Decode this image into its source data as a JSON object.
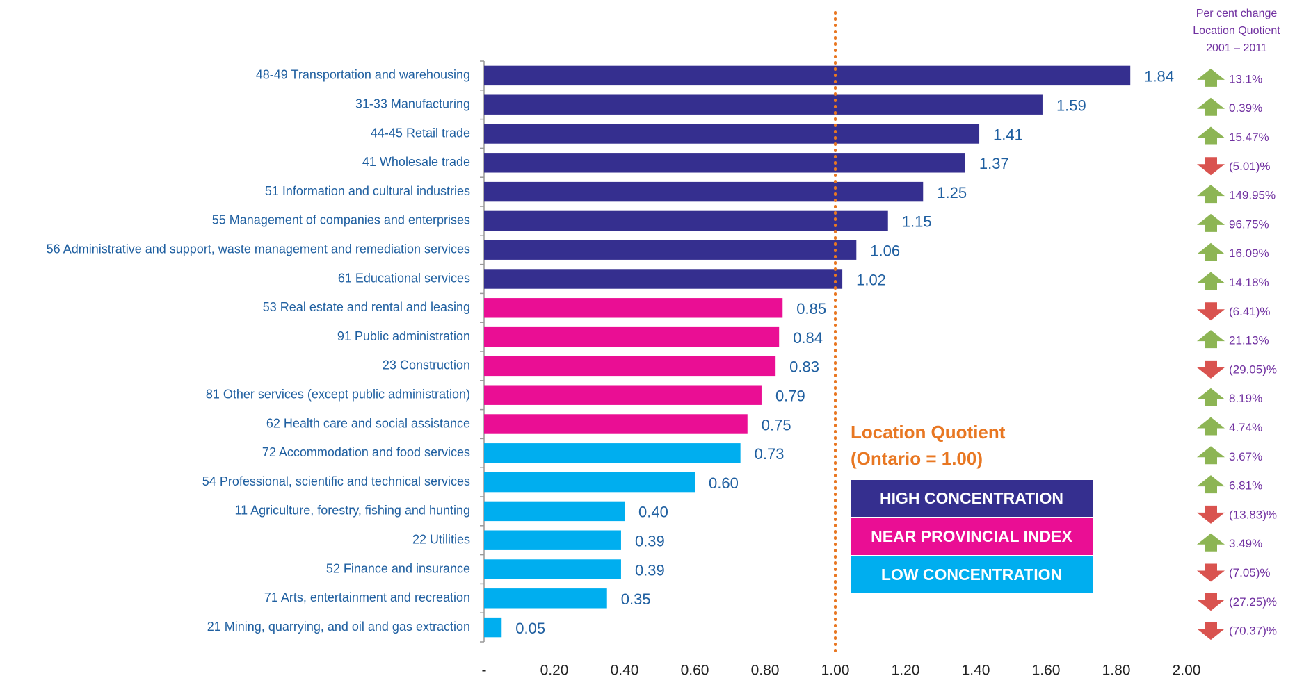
{
  "chart_data": {
    "type": "bar",
    "orientation": "horizontal",
    "categories": [
      "48-49 Transportation and warehousing",
      "31-33 Manufacturing",
      "44-45 Retail trade",
      "41 Wholesale trade",
      "51 Information and cultural industries",
      "55 Management of companies and enterprises",
      "56 Administrative and support, waste management and remediation services",
      "61 Educational services",
      "53 Real estate and rental and leasing",
      "91 Public administration",
      "23 Construction",
      "81 Other services (except public administration)",
      "62 Health care and social assistance",
      "72 Accommodation and food services",
      "54 Professional, scientific and technical services",
      "11 Agriculture, forestry, fishing and hunting",
      "22 Utilities",
      "52 Finance and insurance",
      "71 Arts, entertainment and recreation",
      "21 Mining, quarrying, and oil and gas extraction"
    ],
    "values": [
      1.84,
      1.59,
      1.41,
      1.37,
      1.25,
      1.15,
      1.06,
      1.02,
      0.85,
      0.84,
      0.83,
      0.79,
      0.75,
      0.73,
      0.6,
      0.4,
      0.39,
      0.39,
      0.35,
      0.05
    ],
    "value_labels": [
      "1.84",
      "1.59",
      "1.41",
      "1.37",
      "1.25",
      "1.15",
      "1.06",
      "1.02",
      "0.85",
      "0.84",
      "0.83",
      "0.79",
      "0.75",
      "0.73",
      "0.60",
      "0.40",
      "0.39",
      "0.39",
      "0.35",
      "0.05"
    ],
    "colors": [
      "#352f8f",
      "#352f8f",
      "#352f8f",
      "#352f8f",
      "#352f8f",
      "#352f8f",
      "#352f8f",
      "#352f8f",
      "#ea0e94",
      "#ea0e94",
      "#ea0e94",
      "#ea0e94",
      "#ea0e94",
      "#00aeef",
      "#00aeef",
      "#00aeef",
      "#00aeef",
      "#00aeef",
      "#00aeef",
      "#00aeef"
    ],
    "xlim": [
      0,
      2
    ],
    "xticks": [
      {
        "value": 0,
        "label": "-"
      },
      {
        "value": 0.2,
        "label": "0.20"
      },
      {
        "value": 0.4,
        "label": "0.40"
      },
      {
        "value": 0.6,
        "label": "0.60"
      },
      {
        "value": 0.8,
        "label": "0.80"
      },
      {
        "value": 1,
        "label": "1.00"
      },
      {
        "value": 1.2,
        "label": "1.20"
      },
      {
        "value": 1.4,
        "label": "1.40"
      },
      {
        "value": 1.6,
        "label": "1.60"
      },
      {
        "value": 1.8,
        "label": "1.80"
      },
      {
        "value": 2,
        "label": "2.00"
      }
    ],
    "reference_line": {
      "value": 1,
      "color": "#e87722"
    },
    "annotation": [
      "Location Quotient",
      "(Ontario = 1.00)"
    ],
    "legend": [
      {
        "label": "HIGH CONCENTRATION",
        "color": "#352f8f"
      },
      {
        "label": "NEAR PROVINCIAL INDEX",
        "color": "#ea0e94"
      },
      {
        "label": "LOW CONCENTRATION",
        "color": "#00aeef"
      }
    ],
    "pct_change": {
      "header": [
        "Per cent change",
        "Location Quotient",
        "2001 – 2011"
      ],
      "values": [
        13.1,
        0.39,
        15.47,
        -5.01,
        149.95,
        96.75,
        16.09,
        14.18,
        -6.41,
        21.13,
        -29.05,
        8.19,
        4.74,
        3.67,
        6.81,
        -13.83,
        3.49,
        -7.05,
        -27.25,
        -70.37
      ],
      "value_labels": [
        "13.1%",
        "0.39%",
        "15.47%",
        "(5.01)%",
        "149.95%",
        "96.75%",
        "16.09%",
        "14.18%",
        "(6.41)%",
        "21.13%",
        "(29.05)%",
        "8.19%",
        "4.74%",
        "3.67%",
        "6.81%",
        "(13.83)%",
        "3.49%",
        "(7.05)%",
        "(27.25)%",
        "(70.37)%"
      ],
      "up_color": "#8db554",
      "down_color": "#d9534f"
    }
  }
}
